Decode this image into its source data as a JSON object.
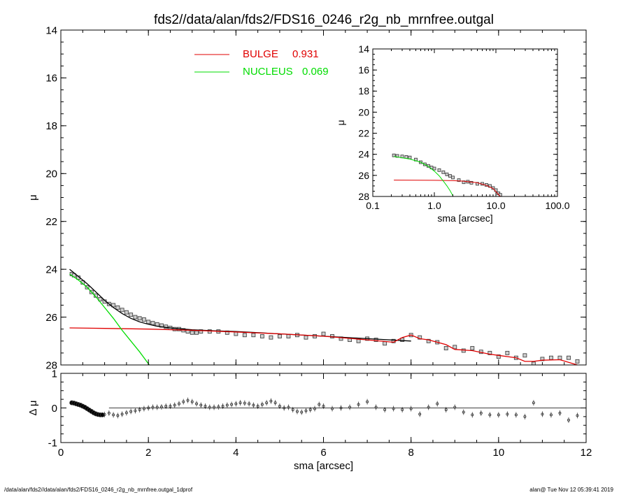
{
  "title": "fds2//data/alan/fds2/FDS16_0246_r2g_nb_mrnfree.outgal",
  "footer_left": "/data/alan/fds2//data/alan/fds2/FDS16_0246_r2g_nb_mrnfree.outgal_1dprof",
  "footer_right": "alan@  Tue Nov 12 05:39:41 2019",
  "colors": {
    "bulge": "#e00000",
    "nucleus": "#00dd00",
    "model": "#000000",
    "data": "#555555"
  },
  "chart_data": [
    {
      "id": "main",
      "type": "line",
      "xlabel": "sma [arcsec]",
      "ylabel": "μ",
      "xlim": [
        0,
        12
      ],
      "ylim": [
        28,
        14
      ],
      "xticks": [
        "0",
        "2",
        "4",
        "6",
        "8",
        "10",
        "12"
      ],
      "yticks": [
        "14",
        "16",
        "18",
        "20",
        "22",
        "24",
        "26",
        "28"
      ],
      "legend": [
        {
          "label": "BULGE",
          "value": "0.931",
          "color": "#e00000"
        },
        {
          "label": "NUCLEUS",
          "value": "0.069",
          "color": "#00dd00"
        }
      ],
      "series": [
        {
          "type": "scatter",
          "x": [
            0.25,
            0.3,
            0.4,
            0.5,
            0.6,
            0.7,
            0.8,
            0.9,
            1.0,
            1.1,
            1.2,
            1.3,
            1.4,
            1.5,
            1.6,
            1.7,
            1.8,
            1.9,
            2.0,
            2.1,
            2.2,
            2.3,
            2.4,
            2.5,
            2.6,
            2.7,
            2.8,
            2.9,
            3.0,
            3.1,
            3.2,
            3.4,
            3.6,
            3.8,
            4.0,
            4.2,
            4.4,
            4.6,
            4.8,
            5.0,
            5.2,
            5.4,
            5.6,
            5.8,
            6.0,
            6.2,
            6.4,
            6.6,
            6.8,
            7.0,
            7.2,
            7.4,
            7.6,
            7.8,
            8.0,
            8.2,
            8.4,
            8.6,
            8.8,
            9.0,
            9.2,
            9.4,
            9.6,
            9.8,
            10.0,
            10.2,
            10.4,
            10.6,
            10.8,
            11.0,
            11.2,
            11.4,
            11.6,
            11.8
          ],
          "y": [
            24.2,
            24.25,
            24.35,
            24.55,
            24.75,
            24.95,
            25.1,
            25.25,
            25.35,
            25.45,
            25.5,
            25.6,
            25.7,
            25.8,
            25.9,
            26.0,
            26.05,
            26.1,
            26.2,
            26.25,
            26.3,
            26.35,
            26.4,
            26.45,
            26.5,
            26.5,
            26.55,
            26.6,
            26.65,
            26.65,
            26.6,
            26.6,
            26.6,
            26.65,
            26.7,
            26.75,
            26.75,
            26.8,
            26.85,
            26.8,
            26.8,
            26.75,
            26.85,
            26.8,
            26.7,
            26.8,
            26.9,
            26.95,
            27.0,
            26.9,
            26.95,
            27.1,
            27.0,
            26.95,
            26.75,
            26.85,
            27.0,
            27.05,
            27.3,
            27.25,
            27.4,
            27.3,
            27.45,
            27.5,
            27.65,
            27.5,
            27.7,
            27.6,
            27.95,
            27.75,
            27.7,
            27.7,
            27.7,
            27.85
          ]
        },
        {
          "name": "model",
          "color": "#000000",
          "x": [
            0.2,
            0.4,
            0.6,
            0.8,
            1.0,
            1.2,
            1.4,
            1.6,
            1.8,
            2.0,
            2.2,
            2.4,
            2.6,
            2.8,
            3.0,
            3.5,
            4.0,
            5.0,
            6.0,
            7.0,
            8.0
          ],
          "y": [
            24.0,
            24.3,
            24.6,
            24.95,
            25.3,
            25.6,
            25.85,
            26.05,
            26.2,
            26.3,
            26.38,
            26.43,
            26.47,
            26.5,
            26.53,
            26.57,
            26.6,
            26.7,
            26.8,
            26.9,
            27.0
          ]
        },
        {
          "name": "BULGE",
          "color": "#e00000",
          "x": [
            0.2,
            1.0,
            2.0,
            3.0,
            4.0,
            5.0,
            6.0,
            7.0,
            7.6,
            7.8,
            8.0,
            8.2,
            8.4,
            8.6,
            8.8,
            9.0,
            9.4,
            9.8,
            10.0,
            10.4,
            10.6,
            10.8,
            11.0,
            11.4,
            11.8
          ],
          "y": [
            26.45,
            26.47,
            26.5,
            26.55,
            26.62,
            26.7,
            26.8,
            26.95,
            27.05,
            26.85,
            26.75,
            26.9,
            26.95,
            27.05,
            27.15,
            27.35,
            27.4,
            27.55,
            27.6,
            27.7,
            27.85,
            27.85,
            27.8,
            27.78,
            28.0
          ]
        },
        {
          "name": "NUCLEUS",
          "color": "#00dd00",
          "x": [
            0.2,
            0.4,
            0.6,
            0.8,
            1.0,
            1.2,
            1.4,
            1.6,
            1.8,
            2.0,
            2.1
          ],
          "y": [
            24.2,
            24.45,
            24.75,
            25.15,
            25.6,
            26.05,
            26.55,
            27.0,
            27.45,
            27.95,
            28.2
          ]
        }
      ]
    },
    {
      "id": "inset",
      "type": "line",
      "xlabel": "sma [arcsec]",
      "ylabel": "μ",
      "xscale": "log",
      "xlim": [
        0.1,
        100
      ],
      "ylim": [
        28,
        14
      ],
      "xticks": [
        "0.1",
        "1.0",
        "10.0",
        "100.0"
      ],
      "yticks": [
        "14",
        "16",
        "18",
        "20",
        "22",
        "24",
        "26",
        "28"
      ],
      "series": [
        {
          "type": "scatter",
          "x": [
            0.22,
            0.25,
            0.3,
            0.35,
            0.4,
            0.5,
            0.6,
            0.7,
            0.8,
            0.9,
            1.0,
            1.2,
            1.4,
            1.6,
            1.8,
            2.0,
            2.5,
            3.0,
            3.5,
            4.0,
            5.0,
            6.0,
            7.0,
            8.0,
            9.0,
            10.0,
            11.0,
            11.8
          ],
          "y": [
            24.1,
            24.15,
            24.2,
            24.25,
            24.3,
            24.5,
            24.75,
            24.95,
            25.1,
            25.25,
            25.35,
            25.5,
            25.7,
            25.9,
            26.05,
            26.2,
            26.45,
            26.65,
            26.6,
            26.7,
            26.8,
            26.8,
            26.9,
            27.0,
            27.2,
            27.4,
            27.7,
            27.85
          ]
        },
        {
          "name": "BULGE",
          "color": "#e00000",
          "x": [
            0.22,
            1.0,
            2.0,
            3.0,
            5.0,
            7.0,
            9.0,
            11.8
          ],
          "y": [
            26.45,
            26.47,
            26.5,
            26.55,
            26.7,
            26.95,
            27.25,
            28.0
          ]
        },
        {
          "name": "NUCLEUS",
          "color": "#00dd00",
          "x": [
            0.22,
            0.4,
            0.6,
            0.8,
            1.0,
            1.2,
            1.4,
            1.6,
            1.8,
            2.0
          ],
          "y": [
            24.2,
            24.45,
            24.75,
            25.15,
            25.6,
            26.05,
            26.55,
            27.0,
            27.45,
            27.95
          ]
        }
      ]
    },
    {
      "id": "residual",
      "type": "scatter",
      "xlabel": "sma [arcsec]",
      "ylabel": "Δ μ",
      "xlim": [
        0,
        12
      ],
      "ylim": [
        -1,
        1
      ],
      "xticks": [
        "0",
        "2",
        "4",
        "6",
        "8",
        "10",
        "12"
      ],
      "yticks": [
        "1",
        "0",
        "-1"
      ],
      "series": [
        {
          "x": [
            0.25,
            0.3,
            0.35,
            0.4,
            0.45,
            0.5,
            0.55,
            0.6,
            0.65,
            0.7,
            0.75,
            0.8,
            0.85,
            0.9,
            0.95,
            1.0,
            1.1,
            1.2,
            1.3,
            1.4,
            1.5,
            1.6,
            1.7,
            1.8,
            1.9,
            2.0,
            2.1,
            2.2,
            2.3,
            2.4,
            2.5,
            2.6,
            2.7,
            2.8,
            2.9,
            3.0,
            3.1,
            3.2,
            3.3,
            3.4,
            3.5,
            3.6,
            3.7,
            3.8,
            3.9,
            4.0,
            4.1,
            4.2,
            4.3,
            4.4,
            4.5,
            4.6,
            4.7,
            4.8,
            4.9,
            5.0,
            5.1,
            5.2,
            5.3,
            5.4,
            5.5,
            5.6,
            5.7,
            5.8,
            5.9,
            6.0,
            6.2,
            6.4,
            6.6,
            6.8,
            7.0,
            7.2,
            7.4,
            7.6,
            7.8,
            8.0,
            8.2,
            8.4,
            8.6,
            8.8,
            9.0,
            9.2,
            9.4,
            9.6,
            9.8,
            10.0,
            10.2,
            10.4,
            10.6,
            10.8,
            11.0,
            11.2,
            11.4,
            11.6,
            11.8
          ],
          "y": [
            0.15,
            0.14,
            0.12,
            0.1,
            0.08,
            0.05,
            0.02,
            -0.02,
            -0.06,
            -0.1,
            -0.14,
            -0.17,
            -0.19,
            -0.2,
            -0.2,
            -0.19,
            -0.15,
            -0.2,
            -0.22,
            -0.18,
            -0.14,
            -0.1,
            -0.08,
            -0.05,
            -0.02,
            0.0,
            0.02,
            0.02,
            0.03,
            0.05,
            0.05,
            0.08,
            0.12,
            0.18,
            0.22,
            0.18,
            0.12,
            0.08,
            0.05,
            0.02,
            0.02,
            0.03,
            0.05,
            0.08,
            0.1,
            0.12,
            0.15,
            0.14,
            0.12,
            0.08,
            0.05,
            0.1,
            0.15,
            0.2,
            0.15,
            0.05,
            0.0,
            0.02,
            -0.05,
            -0.1,
            -0.12,
            -0.08,
            -0.05,
            -0.02,
            0.1,
            0.05,
            -0.02,
            0.0,
            0.02,
            0.1,
            0.18,
            0.02,
            -0.05,
            -0.02,
            -0.05,
            -0.02,
            -0.18,
            0.02,
            0.12,
            -0.05,
            0.02,
            -0.12,
            -0.2,
            -0.15,
            -0.2,
            -0.2,
            -0.18,
            -0.2,
            -0.25,
            0.15,
            -0.18,
            -0.2,
            -0.15,
            -0.35,
            -0.22
          ]
        }
      ]
    }
  ]
}
